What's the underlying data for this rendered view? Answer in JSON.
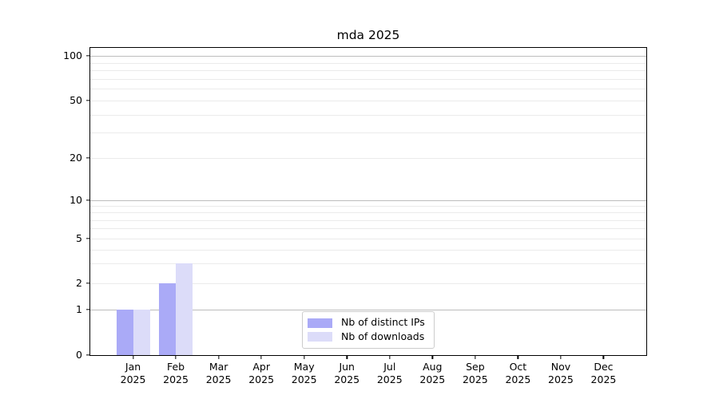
{
  "figure": {
    "background": "#ffffff"
  },
  "chart_data": {
    "type": "bar",
    "title": "mda 2025",
    "xlabel": "",
    "ylabel": "",
    "categories": [
      "Jan",
      "Feb",
      "Mar",
      "Apr",
      "May",
      "Jun",
      "Jul",
      "Aug",
      "Sep",
      "Oct",
      "Nov",
      "Dec"
    ],
    "year_label": "2025",
    "series": [
      {
        "name": "Nb of distinct IPs",
        "color": "#aaaaf7",
        "values": [
          1,
          2,
          0,
          0,
          0,
          0,
          0,
          0,
          0,
          0,
          0,
          0
        ]
      },
      {
        "name": "Nb of downloads",
        "color": "#dcdcf9",
        "values": [
          1,
          3,
          0,
          0,
          0,
          0,
          0,
          0,
          0,
          0,
          0,
          0
        ]
      }
    ],
    "y_axis": {
      "scale": "log above 1, linear 0-1",
      "ticks": [
        0,
        1,
        2,
        5,
        10,
        20,
        50,
        100
      ],
      "range": [
        0,
        120
      ]
    },
    "grid": {
      "major_lines": [
        1,
        10,
        100
      ],
      "minor_lines": [
        2,
        3,
        4,
        5,
        6,
        7,
        8,
        9,
        20,
        30,
        40,
        50,
        60,
        70,
        80,
        90
      ],
      "major_color": "#bdbdbd",
      "minor_color": "#ebebeb"
    },
    "legend": {
      "position": "inside lower-center",
      "entries": [
        "Nb of distinct IPs",
        "Nb of downloads"
      ]
    },
    "spine_color": "#000000"
  }
}
